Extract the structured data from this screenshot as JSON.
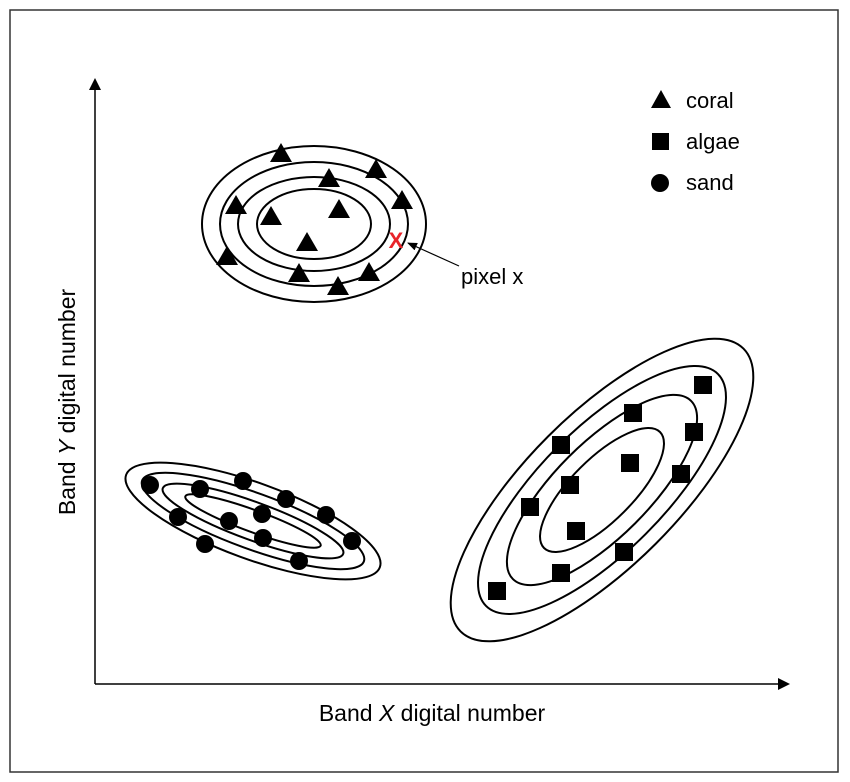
{
  "chart_data": {
    "type": "scatter",
    "xlabel_prefix": "Band ",
    "xlabel_var": "X",
    "xlabel_suffix": " digital number",
    "ylabel_prefix": "Band ",
    "ylabel_var": "Y",
    "ylabel_suffix": " digital number",
    "legend_position": "top-right",
    "legend": [
      {
        "label": "coral",
        "marker": "triangle"
      },
      {
        "label": "algae",
        "marker": "square"
      },
      {
        "label": "sand",
        "marker": "circle"
      }
    ],
    "annotation": {
      "marker_label": "X",
      "label": "pixel x",
      "marker_color": "#e8242a"
    },
    "series": [
      {
        "name": "coral",
        "marker": "triangle",
        "clusters": 1
      },
      {
        "name": "algae",
        "marker": "square",
        "clusters": 1
      },
      {
        "name": "sand",
        "marker": "circle",
        "clusters": 1
      }
    ],
    "colors": {
      "ink": "#000000",
      "highlight": "#e8242a",
      "frame": "#333333"
    }
  }
}
